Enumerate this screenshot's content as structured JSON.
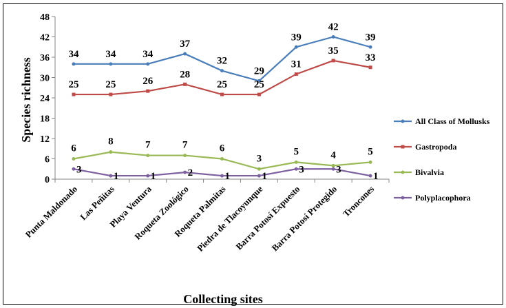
{
  "chart_data": {
    "type": "line",
    "xlabel": "Collecting sites",
    "ylabel": "Species richness",
    "ylim": [
      0,
      48
    ],
    "yticks": [
      0,
      6,
      12,
      18,
      24,
      30,
      36,
      42,
      48
    ],
    "grid": false,
    "legend_position": "right",
    "categories": [
      "Punta Maldonado",
      "Las Peñitas",
      "Playa Ventura",
      "Roqueta Zoológico",
      "Roqueta Palmitas",
      "Piedra de Tlacoyunque",
      "Barra Potosí Expuesto",
      "Barra Potosí Protegido",
      "Troncones"
    ],
    "series": [
      {
        "name": "All Class of Mollusks",
        "color": "#4A7EBB",
        "values": [
          34,
          34,
          34,
          37,
          32,
          29,
          39,
          42,
          39
        ]
      },
      {
        "name": "Gastropoda",
        "color": "#BE4B48",
        "values": [
          25,
          25,
          26,
          28,
          25,
          25,
          31,
          35,
          33
        ]
      },
      {
        "name": "Bivalvia",
        "color": "#98B954",
        "values": [
          6,
          8,
          7,
          7,
          6,
          3,
          5,
          4,
          5
        ]
      },
      {
        "name": "Polyplacophora",
        "color": "#7D60A0",
        "values": [
          3,
          1,
          1,
          2,
          1,
          1,
          3,
          3,
          1
        ]
      }
    ]
  }
}
